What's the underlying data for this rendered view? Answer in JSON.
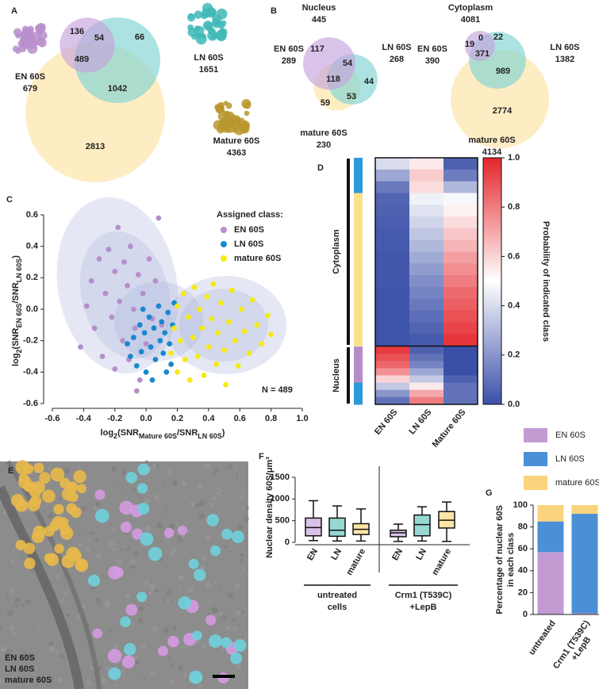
{
  "chart_data": [
    {
      "type": "venn",
      "panel": "A",
      "sets": [
        {
          "name": "EN 60S",
          "total": 679,
          "color": "#c6a3dc"
        },
        {
          "name": "LN 60S",
          "total": 1651,
          "color": "#80d2d2"
        },
        {
          "name": "Mature 60S",
          "total": 4363,
          "color": "#fde3a3"
        }
      ],
      "regions": [
        136,
        54,
        66,
        489,
        1042,
        2813
      ]
    },
    {
      "type": "venn",
      "panel": "B",
      "title": "Nucleus",
      "total": 445,
      "sets": [
        {
          "name": "EN 60S",
          "total": 289,
          "color": "#c6a3dc"
        },
        {
          "name": "LN 60S",
          "total": 268,
          "color": "#80d2d2"
        },
        {
          "name": "mature 60S",
          "total": 230,
          "color": "#fde3a3"
        }
      ],
      "regions": [
        117,
        54,
        118,
        44,
        53,
        59
      ]
    },
    {
      "type": "venn",
      "title": "Cytoplasm",
      "total": 4081,
      "sets": [
        {
          "name": "EN 60S",
          "total": 390,
          "color": "#c6a3dc"
        },
        {
          "name": "LN 60S",
          "total": 1382,
          "color": "#80d2d2"
        },
        {
          "name": "mature 60S",
          "total": 4134,
          "color": "#fde3a3"
        }
      ],
      "regions": [
        19,
        0,
        22,
        371,
        989,
        2774
      ]
    },
    {
      "type": "scatter",
      "panel": "C",
      "xlabel": [
        "log",
        "2",
        "(SNR",
        "Mature 60S",
        "/SNR",
        "LN 60S",
        ")"
      ],
      "ylabel": [
        "log",
        "2",
        "(SNR",
        "EN 60S",
        "/SNR",
        "LN 60S",
        ")"
      ],
      "xlim": [
        -0.6,
        1.0
      ],
      "ylim": [
        -0.6,
        0.6
      ],
      "xticks": [
        -0.6,
        -0.4,
        -0.2,
        {
          "value": 0,
          "label": "0.0"
        },
        0.2,
        0.4,
        0.6,
        0.8,
        {
          "value": 1,
          "label": "1.0"
        }
      ],
      "yticks": [
        -0.6,
        -0.4,
        -0.2,
        {
          "value": 0,
          "label": "0.0"
        },
        0.2,
        0.4,
        0.6
      ],
      "legend_title": "Assigned class:",
      "annotation": "N = 489",
      "series": [
        {
          "name": "EN 60S",
          "color": "#b58fcb",
          "x": [
            -0.42,
            -0.38,
            -0.35,
            -0.33,
            -0.3,
            -0.28,
            -0.26,
            -0.24,
            -0.22,
            -0.2,
            -0.2,
            -0.18,
            -0.17,
            -0.15,
            -0.14,
            -0.12,
            -0.11,
            -0.1,
            -0.08,
            -0.07,
            -0.05,
            -0.04,
            -0.02,
            0,
            0.02,
            0.04,
            0.06,
            0.08,
            0.1,
            -0.06
          ],
          "values": [
            -0.24,
            0.02,
            0.18,
            -0.12,
            0.32,
            -0.3,
            0.1,
            0.38,
            -0.05,
            0.24,
            -0.38,
            0.52,
            0.05,
            -0.2,
            0.3,
            0.15,
            -0.32,
            0.4,
            0,
            -0.12,
            0.22,
            -0.45,
            0.1,
            -0.22,
            0.32,
            -0.06,
            0.18,
            0.58,
            -0.1,
            -0.52
          ]
        },
        {
          "name": "LN 60S",
          "color": "#1a87cf",
          "x": [
            -0.12,
            -0.1,
            -0.08,
            -0.06,
            -0.04,
            -0.03,
            -0.01,
            0,
            0.02,
            0.03,
            0.05,
            0.06,
            0.08,
            0.09,
            0.1,
            0.11,
            0.12,
            0.14,
            0.15,
            0.16,
            0.17,
            0.18,
            0.04,
            0.13,
            -0.02
          ],
          "values": [
            -0.22,
            -0.3,
            -0.18,
            -0.36,
            -0.1,
            -0.27,
            -0.15,
            -0.4,
            -0.05,
            -0.24,
            -0.12,
            -0.32,
            0.02,
            -0.2,
            -0.08,
            -0.28,
            -0.15,
            -0.02,
            -0.22,
            -0.35,
            -0.1,
            0.04,
            -0.45,
            -0.4,
            0
          ]
        },
        {
          "name": "mature 60S",
          "color": "#f5ea14",
          "x": [
            0.16,
            0.18,
            0.2,
            0.2,
            0.22,
            0.24,
            0.25,
            0.27,
            0.28,
            0.3,
            0.31,
            0.33,
            0.34,
            0.36,
            0.37,
            0.39,
            0.4,
            0.42,
            0.43,
            0.45,
            0.46,
            0.48,
            0.5,
            0.51,
            0.53,
            0.55,
            0.57,
            0.59,
            0.61,
            0.63,
            0.66,
            0.68,
            0.71,
            0.74,
            0.78,
            0.8
          ],
          "values": [
            -0.28,
            -0.12,
            0.02,
            -0.4,
            -0.2,
            0.1,
            -0.32,
            -0.05,
            -0.45,
            -0.18,
            0.14,
            -0.3,
            0,
            -0.12,
            -0.42,
            0.08,
            -0.24,
            -0.06,
            0.16,
            -0.35,
            -0.15,
            0.04,
            -0.26,
            -0.48,
            -0.08,
            0.12,
            -0.2,
            -0.36,
            0,
            -0.14,
            -0.28,
            0.06,
            -0.1,
            -0.22,
            -0.04,
            -0.16
          ]
        }
      ]
    },
    {
      "type": "heatmap",
      "panel": "D",
      "columns": [
        "EN 60S",
        "LN 60S",
        "Mature 60S"
      ],
      "class_colors": [
        "#b58ec9",
        "#2a9ad8",
        "#fbe08a"
      ],
      "colormap": [
        "#3a4fa8",
        "#ffffff",
        "#e4252b"
      ],
      "clim": [
        0,
        1
      ],
      "colorbar_ticks": [
        {
          "value": 0,
          "label": "0.0"
        },
        0.2,
        0.4,
        0.6,
        0.8,
        {
          "value": 1,
          "label": "1.0"
        }
      ],
      "colorbar_label": "Probability of indicated class",
      "groups": [
        {
          "name": "Cytoplasm",
          "rows": [
            [
              0.4,
              0.55,
              0.05
            ],
            [
              0.25,
              0.62,
              0.13
            ],
            [
              0.12,
              0.58,
              0.3
            ],
            [
              0.06,
              0.46,
              0.48
            ],
            [
              0.05,
              0.42,
              0.53
            ],
            [
              0.04,
              0.38,
              0.58
            ],
            [
              0.03,
              0.34,
              0.63
            ],
            [
              0.03,
              0.3,
              0.67
            ],
            [
              0.02,
              0.26,
              0.72
            ],
            [
              0.02,
              0.22,
              0.76
            ],
            [
              0.02,
              0.18,
              0.8
            ],
            [
              0.01,
              0.15,
              0.84
            ],
            [
              0.01,
              0.12,
              0.87
            ],
            [
              0.01,
              0.09,
              0.9
            ],
            [
              0.01,
              0.06,
              0.93
            ],
            [
              0.01,
              0.03,
              0.96
            ]
          ]
        },
        {
          "name": "Nucleus",
          "rows": [
            [
              0.95,
              0.05,
              0
            ],
            [
              0.9,
              0.1,
              0
            ],
            [
              0.85,
              0.15,
              0
            ],
            [
              0.75,
              0.25,
              0
            ],
            [
              0.6,
              0.35,
              0.05
            ],
            [
              0.35,
              0.55,
              0.1
            ],
            [
              0.2,
              0.7,
              0.1
            ],
            [
              0.1,
              0.8,
              0.1
            ]
          ]
        }
      ]
    },
    {
      "type": "image",
      "panel": "E",
      "legend": [
        {
          "name": "EN 60S",
          "color": "#d59ae0"
        },
        {
          "name": "LN 60S",
          "color": "#6fd0dc"
        },
        {
          "name": "mature 60S",
          "color": "#e8b94a"
        }
      ]
    },
    {
      "type": "box",
      "panel": "F",
      "ylabel": "Nuclear density 60S/μm³",
      "ylim": [
        0,
        1500
      ],
      "yticks": [
        0,
        500,
        1000,
        1500
      ],
      "colors": [
        "#d8c3e6",
        "#97d8d2",
        "#fde5a6"
      ],
      "groups": [
        {
          "lines": [
            "untreated",
            "cells"
          ],
          "categories": [
            "EN",
            "LN",
            "mature"
          ],
          "boxes": [
            {
              "min": 40,
              "q1": 150,
              "median": 340,
              "q3": 560,
              "max": 960
            },
            {
              "min": 30,
              "q1": 140,
              "median": 280,
              "q3": 560,
              "max": 840
            },
            {
              "min": 30,
              "q1": 180,
              "median": 300,
              "q3": 430,
              "max": 770
            }
          ]
        },
        {
          "lines": [
            "Crm1 (T539C)",
            "+LepB"
          ],
          "categories": [
            "EN",
            "LN",
            "mature"
          ],
          "boxes": [
            {
              "min": 20,
              "q1": 130,
              "median": 220,
              "q3": 280,
              "max": 420
            },
            {
              "min": 30,
              "q1": 150,
              "median": 410,
              "q3": 630,
              "max": 820
            },
            {
              "min": 20,
              "q1": 330,
              "median": 510,
              "q3": 710,
              "max": 930
            }
          ]
        }
      ]
    },
    {
      "type": "bar",
      "panel": "G",
      "stacked": true,
      "ylabel": [
        "Percentage of nuclear 60S",
        "in each class"
      ],
      "categories": [
        [
          "untreated"
        ],
        [
          "Crm1 (T539C)",
          "+LepB"
        ]
      ],
      "category_colors": [
        "#222222",
        "#c0141c"
      ],
      "ylim": [
        0,
        100
      ],
      "yticks": [
        0,
        20,
        40,
        60,
        80,
        100
      ],
      "series": [
        {
          "name": "EN 60S",
          "color": "#c39bd3",
          "values": [
            57,
            1
          ]
        },
        {
          "name": "LN 60S",
          "color": "#4b8fd6",
          "values": [
            28,
            91
          ]
        },
        {
          "name": "mature 60S",
          "color": "#fbd37c",
          "values": [
            15,
            8
          ]
        }
      ]
    }
  ]
}
